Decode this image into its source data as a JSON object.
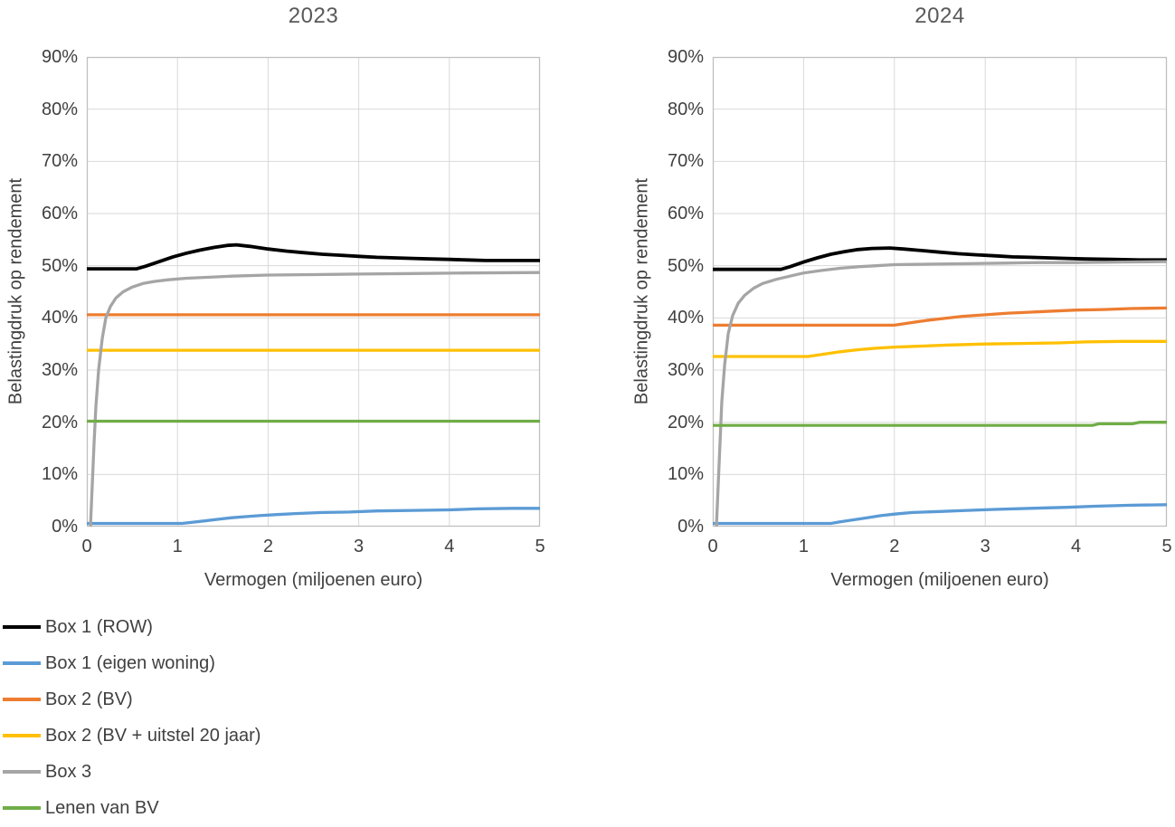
{
  "legend": {
    "items": [
      {
        "key": "box1_row",
        "label": "Box 1 (ROW)",
        "color": "#000000"
      },
      {
        "key": "box1_eigen_woning",
        "label": "Box 1 (eigen woning)",
        "color": "#5B9BD5"
      },
      {
        "key": "box2_bv",
        "label": "Box 2 (BV)",
        "color": "#ED7D31"
      },
      {
        "key": "box2_bv_uitstel",
        "label": "Box 2 (BV + uitstel 20 jaar)",
        "color": "#FFC000"
      },
      {
        "key": "box3",
        "label": "Box 3",
        "color": "#A5A5A5"
      },
      {
        "key": "lenen_van_bv",
        "label": "Lenen van BV",
        "color": "#70AD47"
      }
    ]
  },
  "chart_data": [
    {
      "type": "line",
      "title": "2023",
      "xlabel": "Vermogen (miljoenen euro)",
      "ylabel": "Belastingdruk op rendement",
      "xlim": [
        0,
        5
      ],
      "ylim": [
        0,
        90
      ],
      "x_tick_labels": [
        "0",
        "1",
        "2",
        "3",
        "4",
        "5"
      ],
      "y_tick_labels": [
        "0%",
        "10%",
        "20%",
        "30%",
        "40%",
        "50%",
        "60%",
        "70%",
        "80%",
        "90%"
      ],
      "grid": true,
      "legend_position": "bottom-left",
      "series": [
        {
          "key": "box1_row",
          "name": "Box 1 (ROW)",
          "color": "#000000",
          "points": [
            [
              0,
              49.4
            ],
            [
              0.55,
              49.4
            ],
            [
              0.65,
              49.9
            ],
            [
              0.8,
              50.8
            ],
            [
              0.95,
              51.7
            ],
            [
              1.1,
              52.4
            ],
            [
              1.25,
              53.0
            ],
            [
              1.4,
              53.5
            ],
            [
              1.55,
              53.9
            ],
            [
              1.65,
              54.0
            ],
            [
              1.8,
              53.7
            ],
            [
              2.0,
              53.2
            ],
            [
              2.2,
              52.8
            ],
            [
              2.4,
              52.5
            ],
            [
              2.6,
              52.2
            ],
            [
              2.8,
              52.0
            ],
            [
              3.0,
              51.8
            ],
            [
              3.2,
              51.6
            ],
            [
              3.4,
              51.5
            ],
            [
              3.6,
              51.4
            ],
            [
              3.8,
              51.3
            ],
            [
              4.0,
              51.2
            ],
            [
              4.2,
              51.1
            ],
            [
              4.4,
              51.0
            ],
            [
              5,
              51.0
            ]
          ]
        },
        {
          "key": "box1_eigen_woning",
          "name": "Box 1 (eigen woning)",
          "color": "#5B9BD5",
          "points": [
            [
              0,
              0.6
            ],
            [
              1.05,
              0.6
            ],
            [
              1.15,
              0.8
            ],
            [
              1.3,
              1.1
            ],
            [
              1.45,
              1.4
            ],
            [
              1.6,
              1.7
            ],
            [
              1.75,
              1.9
            ],
            [
              1.9,
              2.1
            ],
            [
              2.1,
              2.3
            ],
            [
              2.3,
              2.5
            ],
            [
              2.6,
              2.7
            ],
            [
              2.9,
              2.8
            ],
            [
              3.2,
              3.0
            ],
            [
              3.6,
              3.1
            ],
            [
              4.0,
              3.2
            ],
            [
              4.3,
              3.4
            ],
            [
              4.7,
              3.5
            ],
            [
              5,
              3.5
            ]
          ]
        },
        {
          "key": "box2_bv",
          "name": "Box 2 (BV)",
          "color": "#ED7D31",
          "points": [
            [
              0,
              40.6
            ],
            [
              5,
              40.6
            ]
          ]
        },
        {
          "key": "box2_bv_uitstel",
          "name": "Box 2 (BV + uitstel 20 jaar)",
          "color": "#FFC000",
          "points": [
            [
              0,
              33.8
            ],
            [
              5,
              33.8
            ]
          ]
        },
        {
          "key": "box3",
          "name": "Box 3",
          "color": "#A5A5A5",
          "points": [
            [
              0.04,
              0
            ],
            [
              0.06,
              8
            ],
            [
              0.08,
              16
            ],
            [
              0.1,
              23
            ],
            [
              0.13,
              30
            ],
            [
              0.17,
              36
            ],
            [
              0.21,
              40
            ],
            [
              0.26,
              42.2
            ],
            [
              0.32,
              43.8
            ],
            [
              0.4,
              45.0
            ],
            [
              0.5,
              45.9
            ],
            [
              0.62,
              46.6
            ],
            [
              0.75,
              47.0
            ],
            [
              0.9,
              47.3
            ],
            [
              1.1,
              47.6
            ],
            [
              1.35,
              47.8
            ],
            [
              1.6,
              48.0
            ],
            [
              2.0,
              48.2
            ],
            [
              2.5,
              48.3
            ],
            [
              3.0,
              48.4
            ],
            [
              3.6,
              48.5
            ],
            [
              4.2,
              48.6
            ],
            [
              5,
              48.7
            ]
          ]
        },
        {
          "key": "lenen_van_bv",
          "name": "Lenen van BV",
          "color": "#70AD47",
          "points": [
            [
              0,
              20.2
            ],
            [
              5,
              20.2
            ]
          ]
        }
      ]
    },
    {
      "type": "line",
      "title": "2024",
      "xlabel": "Vermogen (miljoenen euro)",
      "ylabel": "Belastingdruk op rendement",
      "xlim": [
        0,
        5
      ],
      "ylim": [
        0,
        90
      ],
      "x_tick_labels": [
        "0",
        "1",
        "2",
        "3",
        "4",
        "5"
      ],
      "y_tick_labels": [
        "0%",
        "10%",
        "20%",
        "30%",
        "40%",
        "50%",
        "60%",
        "70%",
        "80%",
        "90%"
      ],
      "grid": true,
      "legend_position": "none",
      "series": [
        {
          "key": "box1_row",
          "name": "Box 1 (ROW)",
          "color": "#000000",
          "points": [
            [
              0,
              49.3
            ],
            [
              0.75,
              49.3
            ],
            [
              0.85,
              49.8
            ],
            [
              1.0,
              50.7
            ],
            [
              1.15,
              51.5
            ],
            [
              1.3,
              52.2
            ],
            [
              1.45,
              52.7
            ],
            [
              1.6,
              53.1
            ],
            [
              1.75,
              53.3
            ],
            [
              1.95,
              53.4
            ],
            [
              2.1,
              53.2
            ],
            [
              2.3,
              52.9
            ],
            [
              2.5,
              52.6
            ],
            [
              2.7,
              52.3
            ],
            [
              2.9,
              52.1
            ],
            [
              3.1,
              51.9
            ],
            [
              3.3,
              51.7
            ],
            [
              3.5,
              51.6
            ],
            [
              3.7,
              51.5
            ],
            [
              3.9,
              51.4
            ],
            [
              4.1,
              51.3
            ],
            [
              4.4,
              51.2
            ],
            [
              4.7,
              51.1
            ],
            [
              5,
              51.1
            ]
          ]
        },
        {
          "key": "box1_eigen_woning",
          "name": "Box 1 (eigen woning)",
          "color": "#5B9BD5",
          "points": [
            [
              0,
              0.6
            ],
            [
              1.3,
              0.6
            ],
            [
              1.4,
              0.9
            ],
            [
              1.55,
              1.3
            ],
            [
              1.7,
              1.7
            ],
            [
              1.85,
              2.1
            ],
            [
              2.0,
              2.4
            ],
            [
              2.2,
              2.7
            ],
            [
              2.5,
              2.9
            ],
            [
              2.8,
              3.1
            ],
            [
              3.1,
              3.3
            ],
            [
              3.5,
              3.5
            ],
            [
              3.9,
              3.7
            ],
            [
              4.2,
              3.9
            ],
            [
              4.6,
              4.1
            ],
            [
              5,
              4.2
            ]
          ]
        },
        {
          "key": "box2_bv",
          "name": "Box 2 (BV)",
          "color": "#ED7D31",
          "points": [
            [
              0,
              38.6
            ],
            [
              2.0,
              38.6
            ],
            [
              2.15,
              39.0
            ],
            [
              2.35,
              39.5
            ],
            [
              2.55,
              39.9
            ],
            [
              2.75,
              40.3
            ],
            [
              3.0,
              40.6
            ],
            [
              3.25,
              40.9
            ],
            [
              3.5,
              41.1
            ],
            [
              3.75,
              41.3
            ],
            [
              4.0,
              41.5
            ],
            [
              4.3,
              41.6
            ],
            [
              4.6,
              41.8
            ],
            [
              5,
              41.9
            ]
          ]
        },
        {
          "key": "box2_bv_uitstel",
          "name": "Box 2 (BV + uitstel 20 jaar)",
          "color": "#FFC000",
          "points": [
            [
              0,
              32.6
            ],
            [
              1.05,
              32.6
            ],
            [
              1.2,
              33.0
            ],
            [
              1.4,
              33.5
            ],
            [
              1.6,
              33.9
            ],
            [
              1.8,
              34.2
            ],
            [
              2.0,
              34.4
            ],
            [
              2.3,
              34.6
            ],
            [
              2.6,
              34.8
            ],
            [
              3.0,
              35.0
            ],
            [
              3.4,
              35.1
            ],
            [
              3.8,
              35.2
            ],
            [
              4.1,
              35.4
            ],
            [
              4.5,
              35.5
            ],
            [
              5,
              35.5
            ]
          ]
        },
        {
          "key": "box3",
          "name": "Box 3",
          "color": "#A5A5A5",
          "points": [
            [
              0.04,
              0
            ],
            [
              0.06,
              8
            ],
            [
              0.08,
              16
            ],
            [
              0.1,
              24
            ],
            [
              0.13,
              31
            ],
            [
              0.17,
              37
            ],
            [
              0.22,
              40.5
            ],
            [
              0.28,
              42.8
            ],
            [
              0.35,
              44.3
            ],
            [
              0.45,
              45.7
            ],
            [
              0.55,
              46.6
            ],
            [
              0.7,
              47.4
            ],
            [
              0.85,
              48.0
            ],
            [
              1.0,
              48.6
            ],
            [
              1.2,
              49.1
            ],
            [
              1.4,
              49.5
            ],
            [
              1.6,
              49.8
            ],
            [
              1.8,
              50.0
            ],
            [
              2.0,
              50.2
            ],
            [
              2.4,
              50.3
            ],
            [
              2.8,
              50.4
            ],
            [
              3.2,
              50.5
            ],
            [
              3.6,
              50.6
            ],
            [
              4.0,
              50.6
            ],
            [
              4.5,
              50.7
            ],
            [
              5,
              50.8
            ]
          ]
        },
        {
          "key": "lenen_van_bv",
          "name": "Lenen van BV",
          "color": "#70AD47",
          "points": [
            [
              0,
              19.4
            ],
            [
              4.18,
              19.4
            ],
            [
              4.25,
              19.7
            ],
            [
              4.62,
              19.7
            ],
            [
              4.7,
              20.0
            ],
            [
              5,
              20.0
            ]
          ]
        }
      ]
    }
  ],
  "style": {
    "grid_color": "#d9d9d9",
    "border_color": "#bfbfbf",
    "title_color": "#595959",
    "text_color": "#404040",
    "background": "#ffffff"
  }
}
